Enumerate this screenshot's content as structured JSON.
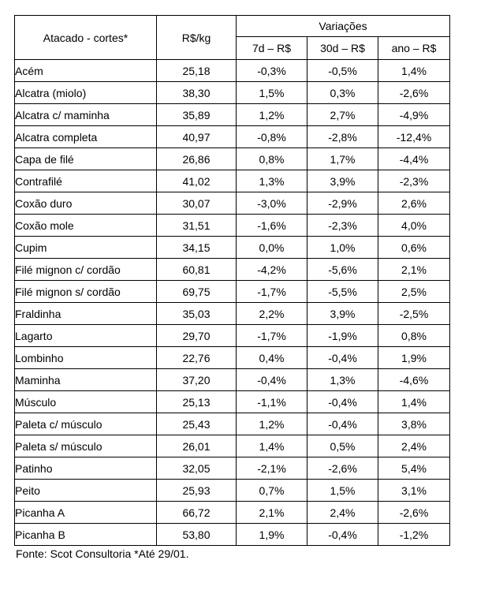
{
  "table": {
    "header": {
      "cut": "Atacado - cortes*",
      "price": "R$/kg",
      "variations": "Variações",
      "d7": "7d – R$",
      "d30": "30d – R$",
      "year": "ano – R$"
    },
    "rows": [
      {
        "cut": "Acém",
        "price": "25,18",
        "d7": "-0,3%",
        "d30": "-0,5%",
        "year": "1,4%"
      },
      {
        "cut": "Alcatra (miolo)",
        "price": "38,30",
        "d7": "1,5%",
        "d30": "0,3%",
        "year": "-2,6%"
      },
      {
        "cut": "Alcatra c/ maminha",
        "price": "35,89",
        "d7": "1,2%",
        "d30": "2,7%",
        "year": "-4,9%"
      },
      {
        "cut": "Alcatra completa",
        "price": "40,97",
        "d7": "-0,8%",
        "d30": "-2,8%",
        "year": "-12,4%"
      },
      {
        "cut": "Capa de filé",
        "price": "26,86",
        "d7": "0,8%",
        "d30": "1,7%",
        "year": "-4,4%"
      },
      {
        "cut": "Contrafilé",
        "price": "41,02",
        "d7": "1,3%",
        "d30": "3,9%",
        "year": "-2,3%"
      },
      {
        "cut": "Coxão duro",
        "price": "30,07",
        "d7": "-3,0%",
        "d30": "-2,9%",
        "year": "2,6%"
      },
      {
        "cut": "Coxão mole",
        "price": "31,51",
        "d7": "-1,6%",
        "d30": "-2,3%",
        "year": "4,0%"
      },
      {
        "cut": "Cupim",
        "price": "34,15",
        "d7": "0,0%",
        "d30": "1,0%",
        "year": "0,6%"
      },
      {
        "cut": "Filé mignon c/ cordão",
        "price": "60,81",
        "d7": "-4,2%",
        "d30": "-5,6%",
        "year": "2,1%"
      },
      {
        "cut": "Filé mignon s/ cordão",
        "price": "69,75",
        "d7": "-1,7%",
        "d30": "-5,5%",
        "year": "2,5%"
      },
      {
        "cut": "Fraldinha",
        "price": "35,03",
        "d7": "2,2%",
        "d30": "3,9%",
        "year": "-2,5%"
      },
      {
        "cut": "Lagarto",
        "price": "29,70",
        "d7": "-1,7%",
        "d30": "-1,9%",
        "year": "0,8%"
      },
      {
        "cut": "Lombinho",
        "price": "22,76",
        "d7": "0,4%",
        "d30": "-0,4%",
        "year": "1,9%"
      },
      {
        "cut": "Maminha",
        "price": "37,20",
        "d7": "-0,4%",
        "d30": "1,3%",
        "year": "-4,6%"
      },
      {
        "cut": "Músculo",
        "price": "25,13",
        "d7": "-1,1%",
        "d30": "-0,4%",
        "year": "1,4%"
      },
      {
        "cut": "Paleta c/ músculo",
        "price": "25,43",
        "d7": "1,2%",
        "d30": "-0,4%",
        "year": "3,8%"
      },
      {
        "cut": "Paleta s/ músculo",
        "price": "26,01",
        "d7": "1,4%",
        "d30": "0,5%",
        "year": "2,4%"
      },
      {
        "cut": "Patinho",
        "price": "32,05",
        "d7": "-2,1%",
        "d30": "-2,6%",
        "year": "5,4%"
      },
      {
        "cut": "Peito",
        "price": "25,93",
        "d7": "0,7%",
        "d30": "1,5%",
        "year": "3,1%"
      },
      {
        "cut": "Picanha A",
        "price": "66,72",
        "d7": "2,1%",
        "d30": "2,4%",
        "year": "-2,6%"
      },
      {
        "cut": "Picanha B",
        "price": "53,80",
        "d7": "1,9%",
        "d30": "-0,4%",
        "year": "-1,2%"
      }
    ]
  },
  "source": "Fonte: Scot Consultoria *Até 29/01."
}
